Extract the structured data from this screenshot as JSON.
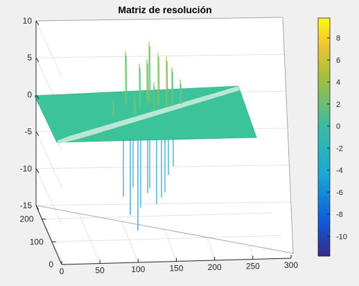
{
  "chart_data": {
    "type": "surface",
    "title": "Matriz de resolución",
    "xlabel": "",
    "ylabel": "",
    "zlabel": "",
    "x_ticks": [
      "0",
      "50",
      "100",
      "150",
      "200",
      "250",
      "300"
    ],
    "y_ticks": [
      "0",
      "100",
      "200"
    ],
    "z_ticks": [
      "10",
      "5",
      "0",
      "-5",
      "-10",
      "-15"
    ],
    "xlim": [
      0,
      300
    ],
    "ylim": [
      0,
      260
    ],
    "zlim": [
      -15,
      10
    ],
    "grid": true,
    "surface": {
      "base_value": 0,
      "diagonal_ridge_value": 1,
      "positive_peaks": [
        6.5,
        5.5,
        5.5,
        7.5,
        6.5,
        6,
        4.5,
        3.5,
        2.5,
        2,
        3
      ],
      "negative_peaks": [
        -8,
        -10.5,
        -12.5,
        -7.5,
        -7,
        -9,
        -8,
        -7.5,
        -5,
        -4,
        -9.5,
        -6.5
      ]
    },
    "colorbar": {
      "colormap": "parula",
      "range": [
        -11.8,
        9.8
      ],
      "ticks": [
        "8",
        "6",
        "4",
        "2",
        "0",
        "-2",
        "-4",
        "-6",
        "-8",
        "-10"
      ],
      "colors": {
        "min": "#352a87",
        "low": "#0f5cdd",
        "mid_low": "#1aaad4",
        "mid": "#3dbba1",
        "mid_high": "#a5be3b",
        "high": "#f5c834",
        "max": "#f9fb0e"
      }
    },
    "surface_color": "#3cc39a",
    "ridge_color": "#c9ead9",
    "background_color": "#f0f0f0",
    "axes_color": "#ffffff"
  }
}
